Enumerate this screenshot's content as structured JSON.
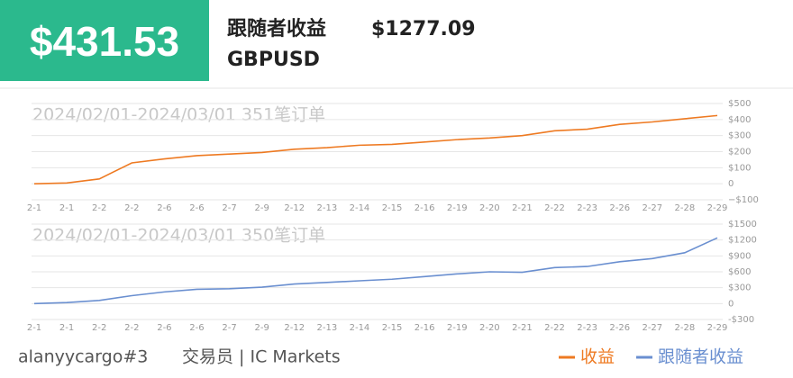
{
  "header": {
    "amount": "$431.53",
    "follower_label": "跟随者收益",
    "follower_amount": "$1277.09",
    "symbol": "GBPUSD"
  },
  "chart_data": [
    {
      "type": "line",
      "subtitle": "2024/02/01-2024/03/01 351笔订单",
      "categories": [
        "2-1",
        "2-1",
        "2-2",
        "2-2",
        "2-6",
        "2-6",
        "2-7",
        "2-9",
        "2-12",
        "2-13",
        "2-14",
        "2-15",
        "2-16",
        "2-19",
        "2-20",
        "2-21",
        "2-22",
        "2-23",
        "2-26",
        "2-27",
        "2-28",
        "2-29"
      ],
      "series": [
        {
          "name": "收益",
          "color": "#ee7a22",
          "values": [
            0,
            5,
            30,
            130,
            155,
            175,
            185,
            195,
            215,
            225,
            240,
            245,
            260,
            275,
            285,
            300,
            330,
            340,
            370,
            385,
            405,
            425
          ]
        }
      ],
      "ylim": [
        -100,
        500
      ],
      "yticks": [
        {
          "value": -100,
          "label": "−$100"
        },
        0,
        {
          "value": 100,
          "label": "$100"
        },
        {
          "value": 200,
          "label": "$200"
        },
        {
          "value": 300,
          "label": "$300"
        },
        {
          "value": 400,
          "label": "$400"
        },
        {
          "value": 500,
          "label": "$500"
        }
      ],
      "grid": true
    },
    {
      "type": "line",
      "subtitle": "2024/02/01-2024/03/01 350笔订单",
      "categories": [
        "2-1",
        "2-1",
        "2-2",
        "2-2",
        "2-6",
        "2-6",
        "2-7",
        "2-9",
        "2-12",
        "2-13",
        "2-14",
        "2-15",
        "2-16",
        "2-19",
        "2-20",
        "2-21",
        "2-22",
        "2-23",
        "2-26",
        "2-27",
        "2-28",
        "2-29"
      ],
      "series": [
        {
          "name": "跟随者收益",
          "color": "#6a8fd0",
          "values": [
            0,
            20,
            60,
            150,
            220,
            270,
            280,
            310,
            370,
            400,
            430,
            460,
            510,
            560,
            600,
            590,
            680,
            700,
            790,
            850,
            960,
            1240
          ]
        }
      ],
      "ylim": [
        -300,
        1500
      ],
      "yticks": [
        {
          "value": -300,
          "label": "-$300"
        },
        0,
        {
          "value": 300,
          "label": "$300"
        },
        {
          "value": 600,
          "label": "$600"
        },
        {
          "value": 900,
          "label": "$900"
        },
        {
          "value": 1200,
          "label": "$1200"
        },
        {
          "value": 1500,
          "label": "$1500"
        }
      ],
      "grid": true
    }
  ],
  "footer": {
    "account": "alanyycargo#3",
    "broker": "交易员 | IC Markets"
  }
}
